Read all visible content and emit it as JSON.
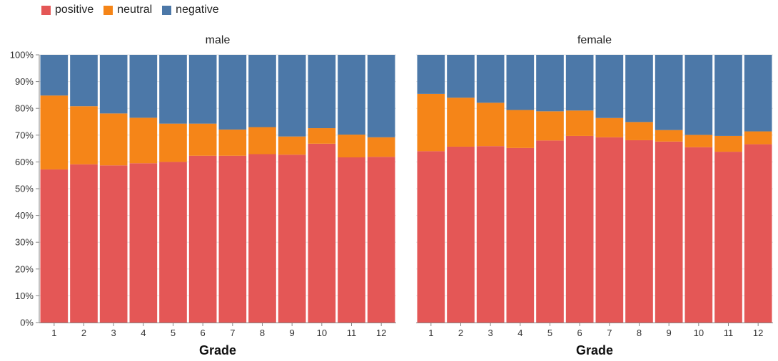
{
  "chart_data": {
    "type": "bar",
    "stacked": "normalize",
    "facet": "gender",
    "categories": [
      "1",
      "2",
      "3",
      "4",
      "5",
      "6",
      "7",
      "8",
      "9",
      "10",
      "11",
      "12"
    ],
    "xlabel": "Grade",
    "ylabel": "",
    "ylim": [
      0,
      1
    ],
    "yticks": [
      "0%",
      "10%",
      "20%",
      "30%",
      "40%",
      "50%",
      "60%",
      "70%",
      "80%",
      "90%",
      "100%"
    ],
    "legend": {
      "position": "top-left",
      "items": [
        {
          "name": "positive",
          "color": "#e45756"
        },
        {
          "name": "neutral",
          "color": "#f58518"
        },
        {
          "name": "negative",
          "color": "#4c78a8"
        }
      ]
    },
    "grid": true,
    "panels": [
      {
        "title": "male",
        "series": [
          {
            "name": "positive",
            "values": [
              0.572,
              0.591,
              0.587,
              0.595,
              0.6,
              0.623,
              0.623,
              0.629,
              0.627,
              0.668,
              0.617,
              0.619
            ]
          },
          {
            "name": "neutral",
            "values": [
              0.276,
              0.217,
              0.194,
              0.17,
              0.143,
              0.12,
              0.098,
              0.101,
              0.068,
              0.058,
              0.085,
              0.073
            ]
          },
          {
            "name": "negative",
            "values": [
              0.152,
              0.192,
              0.219,
              0.235,
              0.257,
              0.257,
              0.279,
              0.27,
              0.305,
              0.274,
              0.298,
              0.308
            ]
          }
        ]
      },
      {
        "title": "female",
        "series": [
          {
            "name": "positive",
            "values": [
              0.64,
              0.657,
              0.659,
              0.652,
              0.68,
              0.697,
              0.692,
              0.681,
              0.676,
              0.655,
              0.638,
              0.666
            ]
          },
          {
            "name": "neutral",
            "values": [
              0.214,
              0.183,
              0.162,
              0.142,
              0.109,
              0.095,
              0.072,
              0.068,
              0.043,
              0.046,
              0.059,
              0.048
            ]
          },
          {
            "name": "negative",
            "values": [
              0.146,
              0.16,
              0.179,
              0.206,
              0.211,
              0.208,
              0.236,
              0.251,
              0.281,
              0.299,
              0.303,
              0.286
            ]
          }
        ]
      }
    ]
  }
}
